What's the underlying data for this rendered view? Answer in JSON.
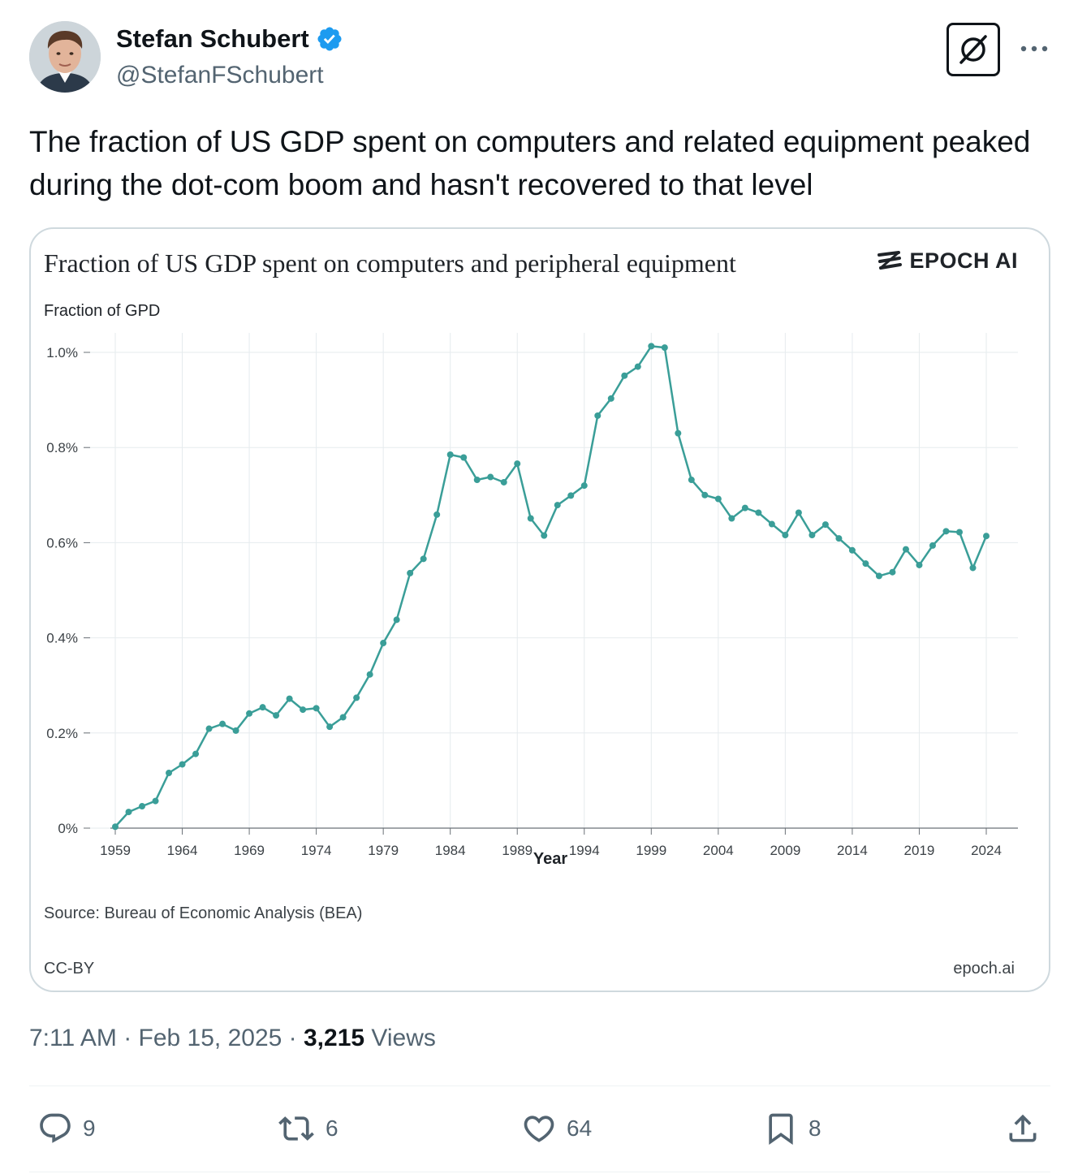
{
  "author": {
    "display_name": "Stefan Schubert",
    "handle": "@StefanFSchubert",
    "verified": true
  },
  "tweet": {
    "text": "The fraction of US GDP spent on computers and related equipment peaked during the dot-com boom and hasn't recovered to that level",
    "time": "7:11 AM",
    "date": "Feb 15, 2025",
    "views_count": "3,215",
    "views_label": "Views"
  },
  "card": {
    "brand": "EPOCH AI",
    "source": "Source: Bureau of Economic Analysis (BEA)",
    "license": "CC-BY",
    "site": "epoch.ai"
  },
  "chart_data": {
    "type": "line",
    "title": "Fraction of US GDP spent on computers and peripheral equipment",
    "ylabel": "Fraction of GPD",
    "xlabel": "Year",
    "ylim": [
      0,
      1.0
    ],
    "xlim": [
      1959,
      2024
    ],
    "y_ticks": [
      "0%",
      "0.2%",
      "0.4%",
      "0.6%",
      "0.8%",
      "1.0%"
    ],
    "x_ticks": [
      "1959",
      "1964",
      "1969",
      "1974",
      "1979",
      "1984",
      "1989",
      "1994",
      "1999",
      "2004",
      "2009",
      "2014",
      "2019",
      "2024"
    ],
    "grid": true,
    "color": "#3a9e98",
    "x": [
      1959,
      1960,
      1961,
      1962,
      1963,
      1964,
      1965,
      1966,
      1967,
      1968,
      1969,
      1970,
      1971,
      1972,
      1973,
      1974,
      1975,
      1976,
      1977,
      1978,
      1979,
      1980,
      1981,
      1982,
      1983,
      1984,
      1985,
      1986,
      1987,
      1988,
      1989,
      1990,
      1991,
      1992,
      1993,
      1994,
      1995,
      1996,
      1997,
      1998,
      1999,
      2000,
      2001,
      2002,
      2003,
      2004,
      2005,
      2006,
      2007,
      2008,
      2009,
      2010,
      2011,
      2012,
      2013,
      2014,
      2015,
      2016,
      2017,
      2018,
      2019,
      2020,
      2021,
      2022,
      2023,
      2024
    ],
    "values": [
      0.003,
      0.034,
      0.046,
      0.057,
      0.116,
      0.134,
      0.156,
      0.209,
      0.219,
      0.205,
      0.241,
      0.254,
      0.237,
      0.272,
      0.249,
      0.252,
      0.213,
      0.233,
      0.274,
      0.323,
      0.389,
      0.438,
      0.536,
      0.566,
      0.659,
      0.785,
      0.779,
      0.732,
      0.738,
      0.727,
      0.766,
      0.651,
      0.615,
      0.679,
      0.699,
      0.72,
      0.867,
      0.903,
      0.951,
      0.97,
      1.013,
      1.01,
      0.83,
      0.732,
      0.7,
      0.692,
      0.651,
      0.673,
      0.663,
      0.639,
      0.616,
      0.663,
      0.616,
      0.638,
      0.609,
      0.584,
      0.556,
      0.53,
      0.538,
      0.586,
      0.553,
      0.594,
      0.624,
      0.622,
      0.547,
      0.614
    ]
  },
  "actions": {
    "reply_count": "9",
    "retweet_count": "6",
    "like_count": "64",
    "bookmark_count": "8"
  }
}
